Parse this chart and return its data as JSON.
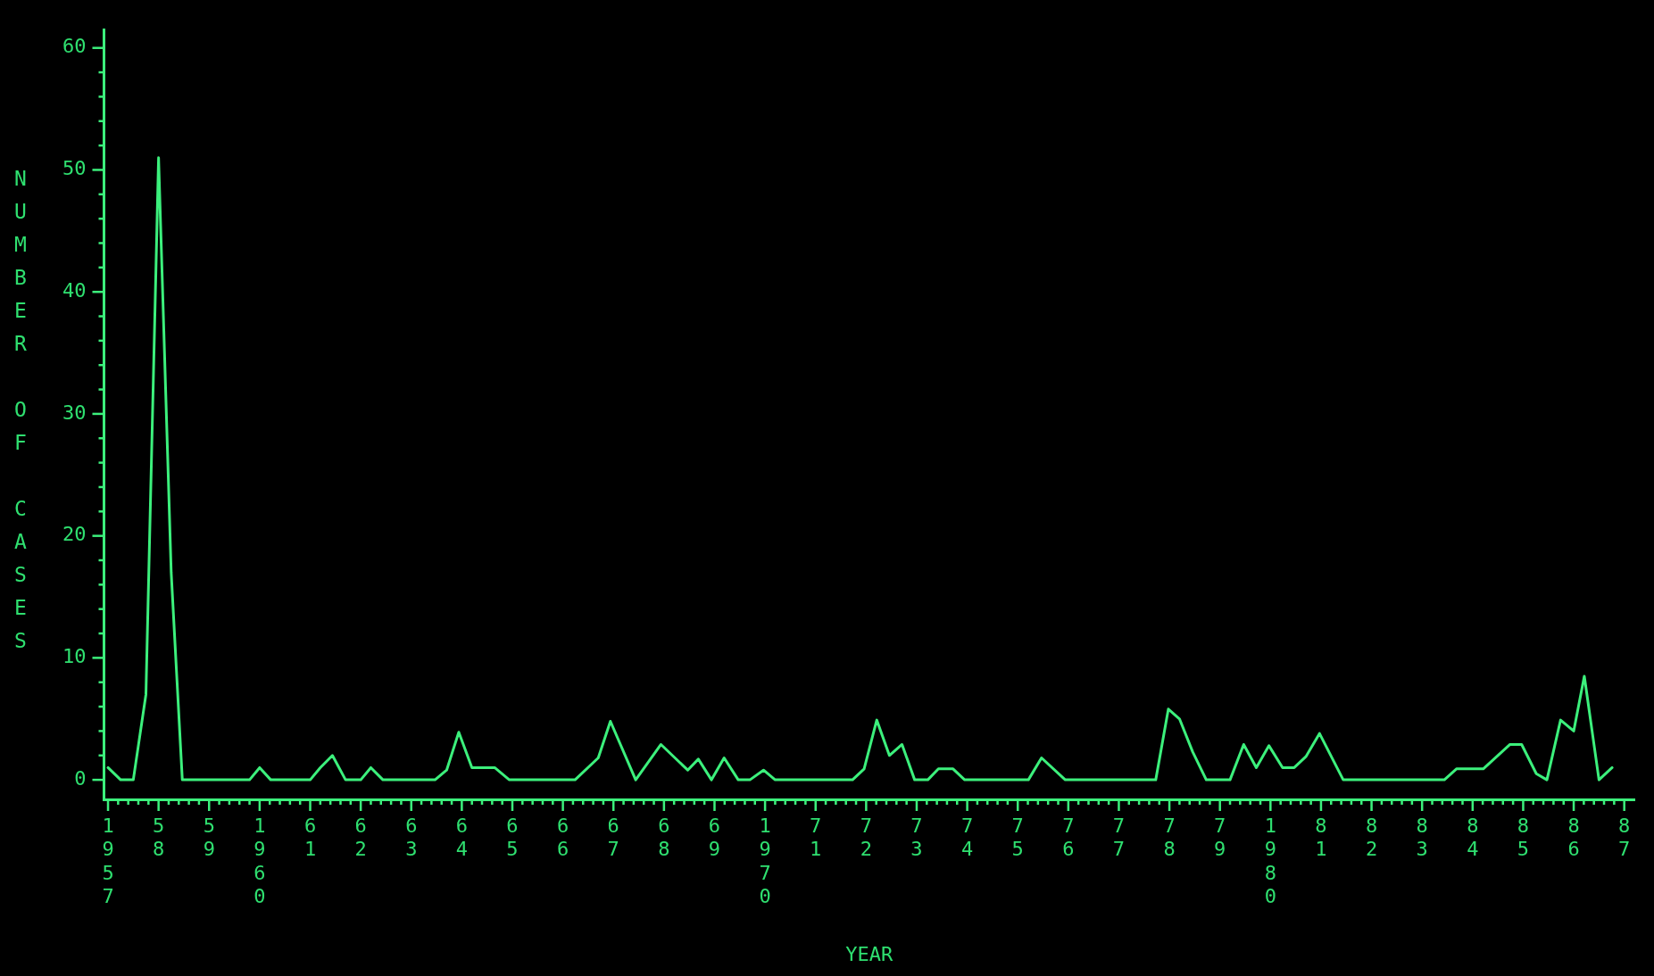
{
  "chart_data": {
    "type": "line",
    "xlabel": "YEAR",
    "ylabel": "NUMBER OF CASES",
    "x": [
      1957.0,
      1957.25,
      1957.5,
      1957.75,
      1958.0,
      1958.25,
      1958.47,
      1959.8,
      1960.0,
      1960.22,
      1961.0,
      1961.2,
      1961.44,
      1961.7,
      1962.0,
      1962.2,
      1962.44,
      1963.47,
      1963.7,
      1963.94,
      1964.2,
      1964.65,
      1964.94,
      1966.24,
      1966.7,
      1966.94,
      1967.44,
      1967.94,
      1968.47,
      1968.68,
      1968.94,
      1969.19,
      1969.47,
      1969.7,
      1969.97,
      1970.2,
      1971.73,
      1971.96,
      1972.21,
      1972.46,
      1972.71,
      1972.96,
      1973.22,
      1973.43,
      1973.72,
      1973.95,
      1975.21,
      1975.47,
      1975.94,
      1977.73,
      1977.98,
      1978.2,
      1978.46,
      1978.73,
      1979.2,
      1979.47,
      1979.72,
      1979.97,
      1980.24,
      1980.47,
      1980.7,
      1980.97,
      1981.44,
      1983.44,
      1983.68,
      1984.21,
      1984.74,
      1984.97,
      1985.26,
      1985.47,
      1985.74,
      1986.0,
      1986.21,
      1986.5,
      1986.76
    ],
    "series": [
      {
        "color": "#3cf07c",
        "values": [
          1,
          0,
          0,
          7,
          51,
          17,
          0,
          0,
          1,
          0,
          0,
          1,
          2,
          0,
          0,
          1,
          0,
          0,
          0.8,
          3.9,
          1,
          1,
          0,
          0,
          1.8,
          4.8,
          0,
          2.9,
          0.8,
          1.7,
          0,
          1.8,
          0,
          0,
          0.8,
          0,
          0,
          0.9,
          4.9,
          2,
          2.9,
          0,
          0,
          0.9,
          0.9,
          0,
          0,
          1.8,
          0,
          0,
          5.8,
          5,
          2.3,
          0,
          0,
          2.9,
          1,
          2.8,
          1,
          1,
          1.9,
          3.8,
          0,
          0,
          0.9,
          0.9,
          2.9,
          2.9,
          0.5,
          0,
          4.9,
          4,
          8.5,
          0,
          1
        ]
      }
    ],
    "xlim": [
      1956.92,
      1987.2
    ],
    "ylim": [
      -1.6,
      61.5
    ],
    "xticks": [
      {
        "value": 1957,
        "label": "1957"
      },
      {
        "value": 1957.2,
        "label": null
      },
      {
        "value": 1957.4,
        "label": null
      },
      {
        "value": 1957.6,
        "label": null
      },
      {
        "value": 1957.8,
        "label": null
      },
      {
        "value": 1958,
        "label": "58"
      },
      {
        "value": 1958.2,
        "label": null
      },
      {
        "value": 1958.4,
        "label": null
      },
      {
        "value": 1958.6,
        "label": null
      },
      {
        "value": 1958.8,
        "label": null
      },
      {
        "value": 1959,
        "label": "59"
      },
      {
        "value": 1959.2,
        "label": null
      },
      {
        "value": 1959.4,
        "label": null
      },
      {
        "value": 1959.6,
        "label": null
      },
      {
        "value": 1959.8,
        "label": null
      },
      {
        "value": 1960,
        "label": "1960"
      },
      {
        "value": 1960.2,
        "label": null
      },
      {
        "value": 1960.4,
        "label": null
      },
      {
        "value": 1960.6,
        "label": null
      },
      {
        "value": 1960.8,
        "label": null
      },
      {
        "value": 1961,
        "label": "61"
      },
      {
        "value": 1961.2,
        "label": null
      },
      {
        "value": 1961.4,
        "label": null
      },
      {
        "value": 1961.6,
        "label": null
      },
      {
        "value": 1961.8,
        "label": null
      },
      {
        "value": 1962,
        "label": "62"
      },
      {
        "value": 1962.2,
        "label": null
      },
      {
        "value": 1962.4,
        "label": null
      },
      {
        "value": 1962.6,
        "label": null
      },
      {
        "value": 1962.8,
        "label": null
      },
      {
        "value": 1963,
        "label": "63"
      },
      {
        "value": 1963.2,
        "label": null
      },
      {
        "value": 1963.4,
        "label": null
      },
      {
        "value": 1963.6,
        "label": null
      },
      {
        "value": 1963.8,
        "label": null
      },
      {
        "value": 1964,
        "label": "64"
      },
      {
        "value": 1964.2,
        "label": null
      },
      {
        "value": 1964.4,
        "label": null
      },
      {
        "value": 1964.6,
        "label": null
      },
      {
        "value": 1964.8,
        "label": null
      },
      {
        "value": 1965,
        "label": "65"
      },
      {
        "value": 1965.2,
        "label": null
      },
      {
        "value": 1965.4,
        "label": null
      },
      {
        "value": 1965.6,
        "label": null
      },
      {
        "value": 1965.8,
        "label": null
      },
      {
        "value": 1966,
        "label": "66"
      },
      {
        "value": 1966.2,
        "label": null
      },
      {
        "value": 1966.4,
        "label": null
      },
      {
        "value": 1966.6,
        "label": null
      },
      {
        "value": 1966.8,
        "label": null
      },
      {
        "value": 1967,
        "label": "67"
      },
      {
        "value": 1967.2,
        "label": null
      },
      {
        "value": 1967.4,
        "label": null
      },
      {
        "value": 1967.6,
        "label": null
      },
      {
        "value": 1967.8,
        "label": null
      },
      {
        "value": 1968,
        "label": "68"
      },
      {
        "value": 1968.2,
        "label": null
      },
      {
        "value": 1968.4,
        "label": null
      },
      {
        "value": 1968.6,
        "label": null
      },
      {
        "value": 1968.8,
        "label": null
      },
      {
        "value": 1969,
        "label": "69"
      },
      {
        "value": 1969.2,
        "label": null
      },
      {
        "value": 1969.4,
        "label": null
      },
      {
        "value": 1969.6,
        "label": null
      },
      {
        "value": 1969.8,
        "label": null
      },
      {
        "value": 1970,
        "label": "1970"
      },
      {
        "value": 1970.2,
        "label": null
      },
      {
        "value": 1970.4,
        "label": null
      },
      {
        "value": 1970.6,
        "label": null
      },
      {
        "value": 1970.8,
        "label": null
      },
      {
        "value": 1971,
        "label": "71"
      },
      {
        "value": 1971.2,
        "label": null
      },
      {
        "value": 1971.4,
        "label": null
      },
      {
        "value": 1971.6,
        "label": null
      },
      {
        "value": 1971.8,
        "label": null
      },
      {
        "value": 1972,
        "label": "72"
      },
      {
        "value": 1972.2,
        "label": null
      },
      {
        "value": 1972.4,
        "label": null
      },
      {
        "value": 1972.6,
        "label": null
      },
      {
        "value": 1972.8,
        "label": null
      },
      {
        "value": 1973,
        "label": "73"
      },
      {
        "value": 1973.2,
        "label": null
      },
      {
        "value": 1973.4,
        "label": null
      },
      {
        "value": 1973.6,
        "label": null
      },
      {
        "value": 1973.8,
        "label": null
      },
      {
        "value": 1974,
        "label": "74"
      },
      {
        "value": 1974.2,
        "label": null
      },
      {
        "value": 1974.4,
        "label": null
      },
      {
        "value": 1974.6,
        "label": null
      },
      {
        "value": 1974.8,
        "label": null
      },
      {
        "value": 1975,
        "label": "75"
      },
      {
        "value": 1975.2,
        "label": null
      },
      {
        "value": 1975.4,
        "label": null
      },
      {
        "value": 1975.6,
        "label": null
      },
      {
        "value": 1975.8,
        "label": null
      },
      {
        "value": 1976,
        "label": "76"
      },
      {
        "value": 1976.2,
        "label": null
      },
      {
        "value": 1976.4,
        "label": null
      },
      {
        "value": 1976.6,
        "label": null
      },
      {
        "value": 1976.8,
        "label": null
      },
      {
        "value": 1977,
        "label": "77"
      },
      {
        "value": 1977.2,
        "label": null
      },
      {
        "value": 1977.4,
        "label": null
      },
      {
        "value": 1977.6,
        "label": null
      },
      {
        "value": 1977.8,
        "label": null
      },
      {
        "value": 1978,
        "label": "78"
      },
      {
        "value": 1978.2,
        "label": null
      },
      {
        "value": 1978.4,
        "label": null
      },
      {
        "value": 1978.6,
        "label": null
      },
      {
        "value": 1978.8,
        "label": null
      },
      {
        "value": 1979,
        "label": "79"
      },
      {
        "value": 1979.2,
        "label": null
      },
      {
        "value": 1979.4,
        "label": null
      },
      {
        "value": 1979.6,
        "label": null
      },
      {
        "value": 1979.8,
        "label": null
      },
      {
        "value": 1980,
        "label": "1980"
      },
      {
        "value": 1980.2,
        "label": null
      },
      {
        "value": 1980.4,
        "label": null
      },
      {
        "value": 1980.6,
        "label": null
      },
      {
        "value": 1980.8,
        "label": null
      },
      {
        "value": 1981,
        "label": "81"
      },
      {
        "value": 1981.2,
        "label": null
      },
      {
        "value": 1981.4,
        "label": null
      },
      {
        "value": 1981.6,
        "label": null
      },
      {
        "value": 1981.8,
        "label": null
      },
      {
        "value": 1982,
        "label": "82"
      },
      {
        "value": 1982.2,
        "label": null
      },
      {
        "value": 1982.4,
        "label": null
      },
      {
        "value": 1982.6,
        "label": null
      },
      {
        "value": 1982.8,
        "label": null
      },
      {
        "value": 1983,
        "label": "83"
      },
      {
        "value": 1983.2,
        "label": null
      },
      {
        "value": 1983.4,
        "label": null
      },
      {
        "value": 1983.6,
        "label": null
      },
      {
        "value": 1983.8,
        "label": null
      },
      {
        "value": 1984,
        "label": "84"
      },
      {
        "value": 1984.2,
        "label": null
      },
      {
        "value": 1984.4,
        "label": null
      },
      {
        "value": 1984.6,
        "label": null
      },
      {
        "value": 1984.8,
        "label": null
      },
      {
        "value": 1985,
        "label": "85"
      },
      {
        "value": 1985.2,
        "label": null
      },
      {
        "value": 1985.4,
        "label": null
      },
      {
        "value": 1985.6,
        "label": null
      },
      {
        "value": 1985.8,
        "label": null
      },
      {
        "value": 1986,
        "label": "86"
      },
      {
        "value": 1986.2,
        "label": null
      },
      {
        "value": 1986.4,
        "label": null
      },
      {
        "value": 1986.6,
        "label": null
      },
      {
        "value": 1986.8,
        "label": null
      },
      {
        "value": 1987,
        "label": "87"
      }
    ],
    "yticks": [
      0,
      {
        "value": 2,
        "label": null
      },
      {
        "value": 4,
        "label": null
      },
      {
        "value": 6,
        "label": null
      },
      {
        "value": 8,
        "label": null
      },
      10,
      {
        "value": 12,
        "label": null
      },
      {
        "value": 14,
        "label": null
      },
      {
        "value": 16,
        "label": null
      },
      {
        "value": 18,
        "label": null
      },
      20,
      {
        "value": 22,
        "label": null
      },
      {
        "value": 24,
        "label": null
      },
      {
        "value": 26,
        "label": null
      },
      {
        "value": 28,
        "label": null
      },
      30,
      {
        "value": 32,
        "label": null
      },
      {
        "value": 34,
        "label": null
      },
      {
        "value": 36,
        "label": null
      },
      {
        "value": 38,
        "label": null
      },
      40,
      {
        "value": 42,
        "label": null
      },
      {
        "value": 44,
        "label": null
      },
      {
        "value": 46,
        "label": null
      },
      {
        "value": 48,
        "label": null
      },
      50,
      {
        "value": 52,
        "label": null
      },
      {
        "value": 54,
        "label": null
      },
      {
        "value": 56,
        "label": null
      },
      {
        "value": 58,
        "label": null
      },
      60
    ],
    "grid": false,
    "legend": false,
    "marker": "none",
    "line_style": "solid"
  }
}
